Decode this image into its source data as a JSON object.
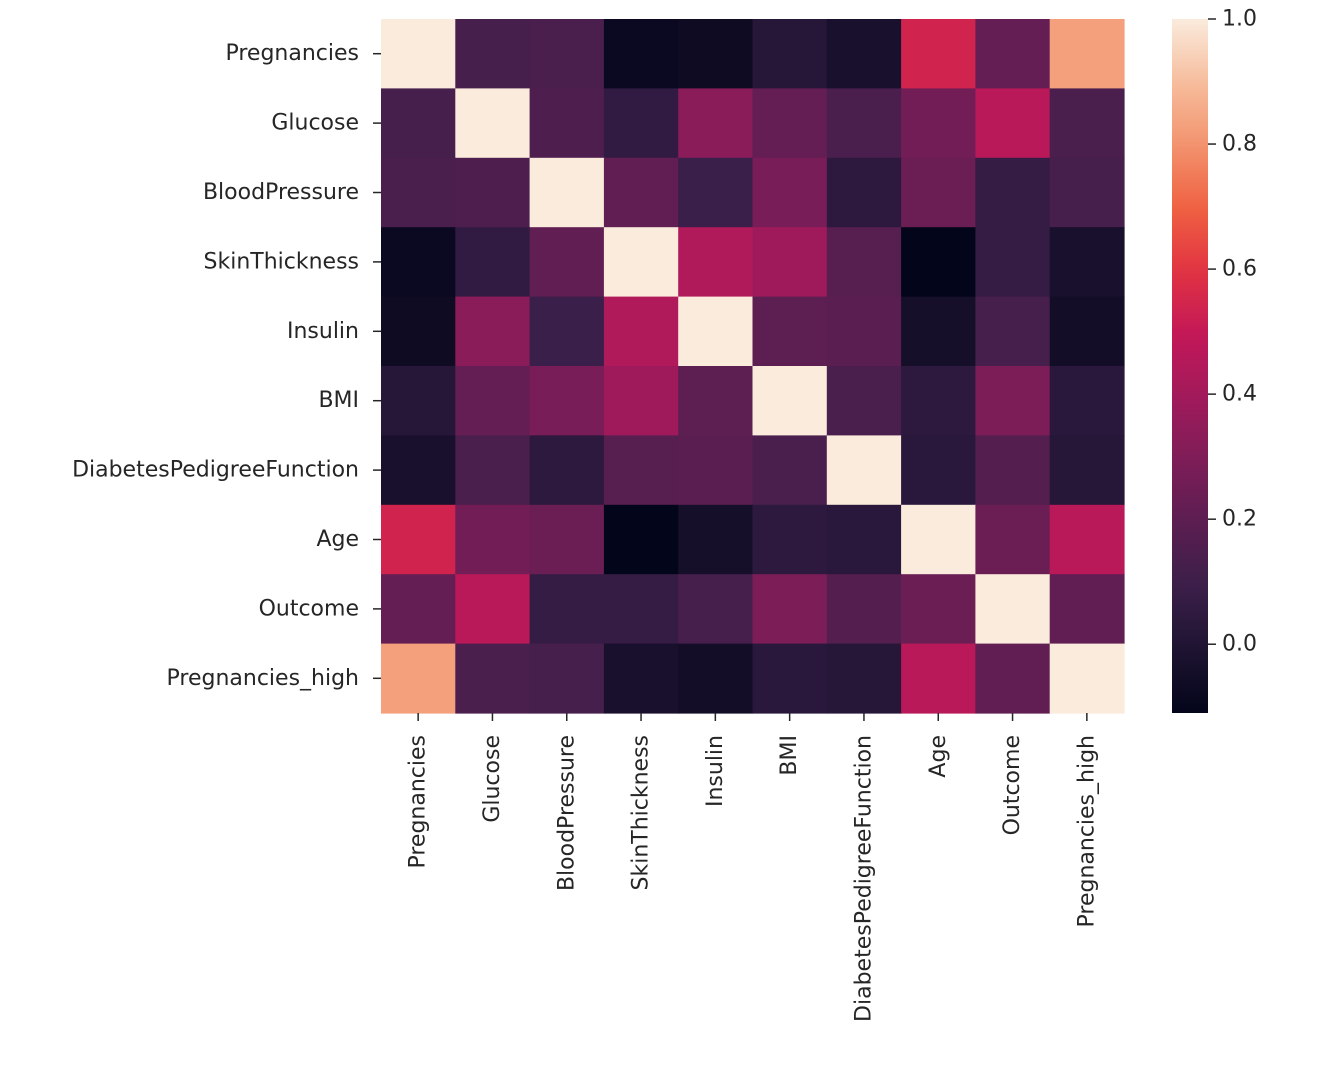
{
  "chart_data": {
    "type": "heatmap",
    "title": "",
    "xlabel": "",
    "ylabel": "",
    "labels": [
      "Pregnancies",
      "Glucose",
      "BloodPressure",
      "SkinThickness",
      "Insulin",
      "BMI",
      "DiabetesPedigreeFunction",
      "Age",
      "Outcome",
      "Pregnancies_high"
    ],
    "matrix": [
      [
        1.0,
        0.13,
        0.14,
        -0.08,
        -0.07,
        0.02,
        -0.03,
        0.54,
        0.22,
        0.83
      ],
      [
        0.13,
        1.0,
        0.15,
        0.06,
        0.33,
        0.22,
        0.14,
        0.26,
        0.47,
        0.14
      ],
      [
        0.14,
        0.15,
        1.0,
        0.21,
        0.09,
        0.28,
        0.04,
        0.24,
        0.07,
        0.13
      ],
      [
        -0.08,
        0.06,
        0.21,
        1.0,
        0.44,
        0.39,
        0.18,
        -0.11,
        0.07,
        -0.03
      ],
      [
        -0.07,
        0.33,
        0.09,
        0.44,
        1.0,
        0.2,
        0.19,
        -0.04,
        0.13,
        -0.05
      ],
      [
        0.02,
        0.22,
        0.28,
        0.39,
        0.2,
        1.0,
        0.14,
        0.04,
        0.29,
        0.03
      ],
      [
        -0.03,
        0.14,
        0.04,
        0.18,
        0.19,
        0.14,
        1.0,
        0.03,
        0.17,
        0.02
      ],
      [
        0.54,
        0.26,
        0.24,
        -0.11,
        -0.04,
        0.04,
        0.03,
        1.0,
        0.24,
        0.47
      ],
      [
        0.22,
        0.47,
        0.07,
        0.07,
        0.13,
        0.29,
        0.17,
        0.24,
        1.0,
        0.21
      ],
      [
        0.83,
        0.14,
        0.13,
        -0.03,
        -0.05,
        0.03,
        0.02,
        0.47,
        0.21,
        1.0
      ]
    ],
    "colorbar": {
      "min": -0.11,
      "max": 1.0,
      "ticks": [
        0.0,
        0.2,
        0.4,
        0.6,
        0.8,
        1.0
      ],
      "tick_labels": [
        "0.0",
        "0.2",
        "0.4",
        "0.6",
        "0.8",
        "1.0"
      ],
      "colormap": "rocket",
      "colors": [
        "#03051a",
        "#1e1331",
        "#3b1f4a",
        "#5b1e51",
        "#7d1d58",
        "#a11a5b",
        "#c31858",
        "#e13342",
        "#ef6142",
        "#f3936e",
        "#f6bd9d",
        "#faebdd"
      ]
    }
  }
}
